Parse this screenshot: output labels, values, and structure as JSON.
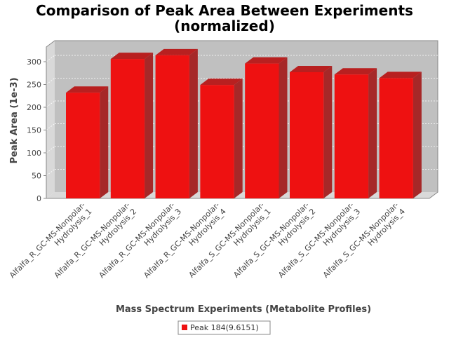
{
  "chart_data": {
    "type": "bar",
    "title_lines": [
      "Comparison of Peak Area Between Experiments",
      "(normalized)"
    ],
    "xlabel": "Mass Spectrum Experiments (Metabolite Profiles)",
    "ylabel": "Peak Area (1e-3)",
    "ylim": [
      0,
      320
    ],
    "yticks": [
      0,
      50,
      100,
      150,
      200,
      250,
      300
    ],
    "grid": true,
    "legend_position": "bottom",
    "categories": [
      [
        "Alfalfa_R_GC-MS-Nonpolar-",
        "Hydrolysis_1"
      ],
      [
        "Alfalfa_R_GC-MS-Nonpolar-",
        "Hydrolysis_2"
      ],
      [
        "Alfalfa_R_GC-MS-Nonpolar-",
        "Hydrolysis_3"
      ],
      [
        "Alfalfa_R_GC-MS-Nonpolar-",
        "Hydrolysis_4"
      ],
      [
        "Alfalfa_S_GC-MS-Nonpolar-",
        "Hydrolysis_1"
      ],
      [
        "Alfalfa_S_GC-MS-Nonpolar-",
        "Hydrolysis_2"
      ],
      [
        "Alfalfa_S_GC-MS-Nonpolar-",
        "Hydrolysis_3"
      ],
      [
        "Alfalfa_S_GC-MS-Nonpolar-",
        "Hydrolysis_4"
      ]
    ],
    "series": [
      {
        "name": "Peak 184(9.6151)",
        "color": "#ee1111",
        "values": [
          232,
          306,
          314,
          249,
          296,
          277,
          272,
          264
        ]
      }
    ]
  }
}
